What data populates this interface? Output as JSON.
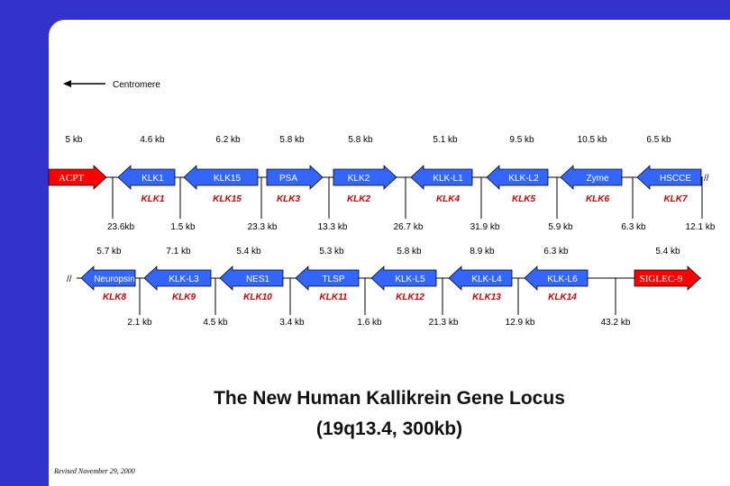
{
  "centromere_label": "Centromere",
  "title_line1": "The New Human Kallikrein Gene Locus",
  "title_line2": "(19q13.4, 300kb)",
  "revised": "Revised November 29, 2000",
  "break_mark": "//",
  "colors": {
    "frame": "#3333cc",
    "arrow_blue": "#3366ff",
    "arrow_red": "#ff0000",
    "gene_text": "#cc0000"
  },
  "row1": {
    "top_sizes": [
      "5 kb",
      "4.6 kb",
      "6.2 kb",
      "5.8 kb",
      "5.8 kb",
      "5.1 kb",
      "9.5 kb",
      "10.5 kb",
      "6.5 kb"
    ],
    "arrows": [
      {
        "label": "ACPT",
        "gene": "",
        "color": "red",
        "direction": "right"
      },
      {
        "label": "KLK1",
        "gene": "KLK1",
        "color": "blue",
        "direction": "left"
      },
      {
        "label": "KLK15",
        "gene": "KLK15",
        "color": "blue",
        "direction": "left"
      },
      {
        "label": "PSA",
        "gene": "KLK3",
        "color": "blue",
        "direction": "right"
      },
      {
        "label": "KLK2",
        "gene": "KLK2",
        "color": "blue",
        "direction": "right"
      },
      {
        "label": "KLK-L1",
        "gene": "KLK4",
        "color": "blue",
        "direction": "left"
      },
      {
        "label": "KLK-L2",
        "gene": "KLK5",
        "color": "blue",
        "direction": "left"
      },
      {
        "label": "Zyme",
        "gene": "KLK6",
        "color": "blue",
        "direction": "left"
      },
      {
        "label": "HSCCE",
        "gene": "KLK7",
        "color": "blue",
        "direction": "left"
      }
    ],
    "gaps": [
      "23.6kb",
      "1.5 kb",
      "23.3 kb",
      "13.3 kb",
      "26.7 kb",
      "31.9 kb",
      "5.9 kb",
      "6.3 kb",
      "12.1 kb"
    ]
  },
  "row2": {
    "top_sizes": [
      "5.7 kb",
      "7.1 kb",
      "5.4 kb",
      "5.3 kb",
      "5.8 kb",
      "8.9 kb",
      "6.3 kb",
      "5.4 kb"
    ],
    "arrows": [
      {
        "label": "Neuropsin",
        "gene": "KLK8",
        "color": "blue",
        "direction": "left"
      },
      {
        "label": "KLK-L3",
        "gene": "KLK9",
        "color": "blue",
        "direction": "left"
      },
      {
        "label": "NES1",
        "gene": "KLK10",
        "color": "blue",
        "direction": "left"
      },
      {
        "label": "TLSP",
        "gene": "KLK11",
        "color": "blue",
        "direction": "left"
      },
      {
        "label": "KLK-L5",
        "gene": "KLK12",
        "color": "blue",
        "direction": "left"
      },
      {
        "label": "KLK-L4",
        "gene": "KLK13",
        "color": "blue",
        "direction": "left"
      },
      {
        "label": "KLK-L6",
        "gene": "KLK14",
        "color": "blue",
        "direction": "left"
      },
      {
        "label": "SIGLEC-9",
        "gene": "",
        "color": "red",
        "direction": "right"
      }
    ],
    "gaps": [
      "2.1 kb",
      "4.5 kb",
      "3.4 kb",
      "1.6 kb",
      "21.3 kb",
      "12.9 kb",
      "43.2 kb"
    ]
  }
}
